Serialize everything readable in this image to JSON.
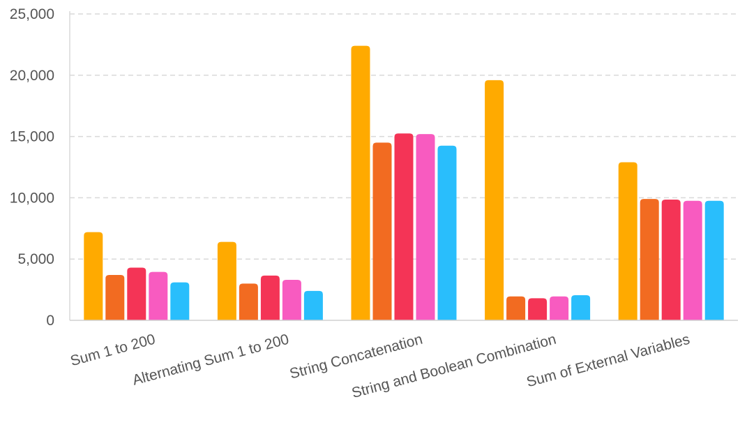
{
  "chart_data": {
    "type": "bar",
    "title": "",
    "xlabel": "",
    "ylabel": "",
    "ylim": [
      0,
      25000
    ],
    "y_ticks": [
      "0",
      "5,000",
      "10,000",
      "15,000",
      "20,000",
      "25,000"
    ],
    "y_tick_values": [
      0,
      5000,
      10000,
      15000,
      20000,
      25000
    ],
    "grid": true,
    "legend": "none",
    "categories": [
      "Sum 1 to 200",
      "Alternating Sum 1 to 200",
      "String Concatenation",
      "String and Boolean Combination",
      "Sum of External Variables"
    ],
    "series": [
      {
        "color": "#FFAA00",
        "values": [
          7200,
          6400,
          22400,
          19600,
          12900
        ]
      },
      {
        "color": "#F26B21",
        "values": [
          3700,
          3000,
          14500,
          1950,
          9900
        ]
      },
      {
        "color": "#F43456",
        "values": [
          4300,
          3650,
          15250,
          1800,
          9850
        ]
      },
      {
        "color": "#F85BC0",
        "values": [
          3950,
          3300,
          15200,
          1950,
          9750
        ]
      },
      {
        "color": "#29BEFC",
        "values": [
          3100,
          2400,
          14250,
          2050,
          9750
        ]
      }
    ]
  }
}
